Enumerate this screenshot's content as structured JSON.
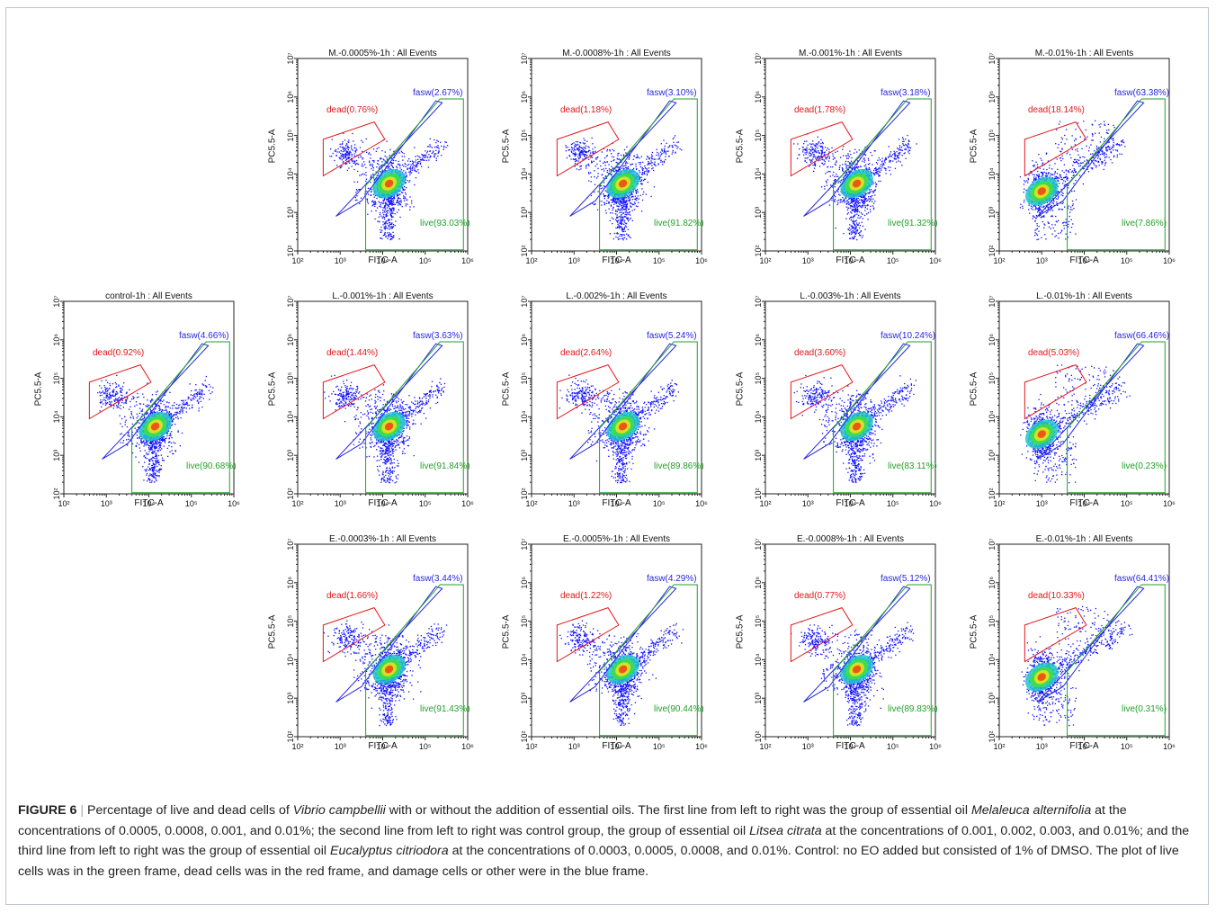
{
  "figure": {
    "label": "FIGURE 6",
    "separator": "|",
    "caption_parts": [
      {
        "text": "Percentage of live and dead cells of ",
        "italic": false
      },
      {
        "text": "Vibrio campbellii",
        "italic": true
      },
      {
        "text": " with or without the addition of essential oils. The first line from left to right was the group of essential oil ",
        "italic": false
      },
      {
        "text": "Melaleuca alternifolia",
        "italic": true
      },
      {
        "text": " at the concentrations of 0.0005, 0.0008, 0.001, and 0.01%; the second line from left to right was control group, the group of essential oil ",
        "italic": false
      },
      {
        "text": "Litsea citrata",
        "italic": true
      },
      {
        "text": " at the concentrations of 0.001, 0.002, 0.003, and 0.01%; and the third line from left to right was the group of essential oil ",
        "italic": false
      },
      {
        "text": "Eucalyptus citriodora",
        "italic": true
      },
      {
        "text": " at the concentrations of 0.0003, 0.0005, 0.0008, and 0.01%. Control: no EO added but consisted of 1% of DMSO. The plot of live cells was in the green frame, dead cells was in the red frame, and damage cells or other were in the blue frame.",
        "italic": false
      }
    ]
  },
  "colors": {
    "dead_gate": "#e4161a",
    "fasw_gate": "#2828e0",
    "live_gate": "#22a22a",
    "dots": "#1010ff"
  },
  "chart_data": [
    {
      "type": "scatter",
      "title": "M.-0.0005%-1h : All Events",
      "xlabel": "FITC-A",
      "ylabel": "PC5.5-A",
      "log_scale": true,
      "xlim": [
        100,
        1000000
      ],
      "ylim": [
        100,
        10000000
      ],
      "x_ticks": [
        "10²",
        "10³",
        "10⁴",
        "10⁵",
        "10⁶"
      ],
      "y_ticks": [
        "10²",
        "10³",
        "10⁴",
        "10⁵",
        "10⁶",
        "10⁷"
      ],
      "gates": {
        "dead": "dead(0.76%)",
        "fasw": "fasw(2.67%)",
        "live": "live(93.03%)"
      },
      "population": "normal"
    },
    {
      "type": "scatter",
      "title": "M.-0.0008%-1h : All Events",
      "xlabel": "FITC-A",
      "ylabel": "PC5.5-A",
      "log_scale": true,
      "xlim": [
        100,
        1000000
      ],
      "ylim": [
        100,
        10000000
      ],
      "x_ticks": [
        "10²",
        "10³",
        "10⁴",
        "10⁵",
        "10⁶"
      ],
      "y_ticks": [
        "10²",
        "10³",
        "10⁴",
        "10⁵",
        "10⁶",
        "10⁷"
      ],
      "gates": {
        "dead": "dead(1.18%)",
        "fasw": "fasw(3.10%)",
        "live": "live(91.82%)"
      },
      "population": "normal"
    },
    {
      "type": "scatter",
      "title": "M.-0.001%-1h : All Events",
      "xlabel": "FITC-A",
      "ylabel": "PC5.5-A",
      "log_scale": true,
      "xlim": [
        100,
        1000000
      ],
      "ylim": [
        100,
        10000000
      ],
      "x_ticks": [
        "10²",
        "10³",
        "10⁴",
        "10⁵",
        "10⁶"
      ],
      "y_ticks": [
        "10²",
        "10³",
        "10⁴",
        "10⁵",
        "10⁶",
        "10⁷"
      ],
      "gates": {
        "dead": "dead(1.78%)",
        "fasw": "fasw(3.18%)",
        "live": "live(91.32%)"
      },
      "population": "normal"
    },
    {
      "type": "scatter",
      "title": "M.-0.01%-1h : All Events",
      "xlabel": "FITC-A",
      "ylabel": "PC5.5-A",
      "log_scale": true,
      "xlim": [
        100,
        1000000
      ],
      "ylim": [
        100,
        10000000
      ],
      "x_ticks": [
        "10²",
        "10³",
        "10⁴",
        "10⁵",
        "10⁶"
      ],
      "y_ticks": [
        "10²",
        "10³",
        "10⁴",
        "10⁵",
        "10⁶",
        "10⁷"
      ],
      "gates": {
        "dead": "dead(18.14%)",
        "fasw": "fasw(63.38%)",
        "live": "live(7.86%)"
      },
      "population": "treated"
    },
    {
      "type": "scatter",
      "title": "control-1h : All Events",
      "xlabel": "FITC-A",
      "ylabel": "PC5.5-A",
      "log_scale": true,
      "xlim": [
        100,
        1000000
      ],
      "ylim": [
        100,
        10000000
      ],
      "x_ticks": [
        "10²",
        "10³",
        "10⁴",
        "10⁵",
        "10⁶"
      ],
      "y_ticks": [
        "10²",
        "10³",
        "10⁴",
        "10⁵",
        "10⁶",
        "10⁷"
      ],
      "gates": {
        "dead": "dead(0.92%)",
        "fasw": "fasw(4.66%)",
        "live": "live(90.68%)"
      },
      "population": "normal"
    },
    {
      "type": "scatter",
      "title": "L.-0.001%-1h : All Events",
      "xlabel": "FITC-A",
      "ylabel": "PC5.5-A",
      "log_scale": true,
      "xlim": [
        100,
        1000000
      ],
      "ylim": [
        100,
        10000000
      ],
      "x_ticks": [
        "10²",
        "10³",
        "10⁴",
        "10⁵",
        "10⁶"
      ],
      "y_ticks": [
        "10²",
        "10³",
        "10⁴",
        "10⁵",
        "10⁶",
        "10⁷"
      ],
      "gates": {
        "dead": "dead(1.44%)",
        "fasw": "fasw(3.63%)",
        "live": "live(91.84%)"
      },
      "population": "normal"
    },
    {
      "type": "scatter",
      "title": "L.-0.002%-1h : All Events",
      "xlabel": "FITC-A",
      "ylabel": "PC5.5-A",
      "log_scale": true,
      "xlim": [
        100,
        1000000
      ],
      "ylim": [
        100,
        10000000
      ],
      "x_ticks": [
        "10²",
        "10³",
        "10⁴",
        "10⁵",
        "10⁶"
      ],
      "y_ticks": [
        "10²",
        "10³",
        "10⁴",
        "10⁵",
        "10⁶",
        "10⁷"
      ],
      "gates": {
        "dead": "dead(2.64%)",
        "fasw": "fasw(5.24%)",
        "live": "live(89.86%)"
      },
      "population": "normal"
    },
    {
      "type": "scatter",
      "title": "L.-0.003%-1h : All Events",
      "xlabel": "FITC-A",
      "ylabel": "PC5.5-A",
      "log_scale": true,
      "xlim": [
        100,
        1000000
      ],
      "ylim": [
        100,
        10000000
      ],
      "x_ticks": [
        "10²",
        "10³",
        "10⁴",
        "10⁵",
        "10⁶"
      ],
      "y_ticks": [
        "10²",
        "10³",
        "10⁴",
        "10⁵",
        "10⁶",
        "10⁷"
      ],
      "gates": {
        "dead": "dead(3.60%)",
        "fasw": "fasw(10.24%)",
        "live": "live(83.11%)"
      },
      "population": "normal"
    },
    {
      "type": "scatter",
      "title": "L.-0.01%-1h : All Events",
      "xlabel": "FITC-A",
      "ylabel": "PC5.5-A",
      "log_scale": true,
      "xlim": [
        100,
        1000000
      ],
      "ylim": [
        100,
        10000000
      ],
      "x_ticks": [
        "10²",
        "10³",
        "10⁴",
        "10⁵",
        "10⁶"
      ],
      "y_ticks": [
        "10²",
        "10³",
        "10⁴",
        "10⁵",
        "10⁶",
        "10⁷"
      ],
      "gates": {
        "dead": "dead(5.03%)",
        "fasw": "fasw(66.46%)",
        "live": "live(0.23%)"
      },
      "population": "treated"
    },
    {
      "type": "scatter",
      "title": "E.-0.0003%-1h : All Events",
      "xlabel": "FITC-A",
      "ylabel": "PC5.5-A",
      "log_scale": true,
      "xlim": [
        100,
        1000000
      ],
      "ylim": [
        100,
        10000000
      ],
      "x_ticks": [
        "10²",
        "10³",
        "10⁴",
        "10⁵",
        "10⁶"
      ],
      "y_ticks": [
        "10²",
        "10³",
        "10⁴",
        "10⁵",
        "10⁶",
        "10⁷"
      ],
      "gates": {
        "dead": "dead(1.66%)",
        "fasw": "fasw(3.44%)",
        "live": "live(91.43%)"
      },
      "population": "normal"
    },
    {
      "type": "scatter",
      "title": "E.-0.0005%-1h : All Events",
      "xlabel": "FITC-A",
      "ylabel": "PC5.5-A",
      "log_scale": true,
      "xlim": [
        100,
        1000000
      ],
      "ylim": [
        100,
        10000000
      ],
      "x_ticks": [
        "10²",
        "10³",
        "10⁴",
        "10⁵",
        "10⁶"
      ],
      "y_ticks": [
        "10²",
        "10³",
        "10⁴",
        "10⁵",
        "10⁶",
        "10⁷"
      ],
      "gates": {
        "dead": "dead(1.22%)",
        "fasw": "fasw(4.29%)",
        "live": "live(90.44%)"
      },
      "population": "normal"
    },
    {
      "type": "scatter",
      "title": "E.-0.0008%-1h : All Events",
      "xlabel": "FITC-A",
      "ylabel": "PC5.5-A",
      "log_scale": true,
      "xlim": [
        100,
        1000000
      ],
      "ylim": [
        100,
        10000000
      ],
      "x_ticks": [
        "10²",
        "10³",
        "10⁴",
        "10⁵",
        "10⁶"
      ],
      "y_ticks": [
        "10²",
        "10³",
        "10⁴",
        "10⁵",
        "10⁶",
        "10⁷"
      ],
      "gates": {
        "dead": "dead(0.77%)",
        "fasw": "fasw(5.12%)",
        "live": "live(89.83%)"
      },
      "population": "normal"
    },
    {
      "type": "scatter",
      "title": "E.-0.01%-1h : All Events",
      "xlabel": "FITC-A",
      "ylabel": "PC5.5-A",
      "log_scale": true,
      "xlim": [
        100,
        1000000
      ],
      "ylim": [
        100,
        10000000
      ],
      "x_ticks": [
        "10²",
        "10³",
        "10⁴",
        "10⁵",
        "10⁶"
      ],
      "y_ticks": [
        "10²",
        "10³",
        "10⁴",
        "10⁵",
        "10⁶",
        "10⁷"
      ],
      "gates": {
        "dead": "dead(10.33%)",
        "fasw": "fasw(64.41%)",
        "live": "live(0.31%)"
      },
      "population": "treated"
    }
  ]
}
